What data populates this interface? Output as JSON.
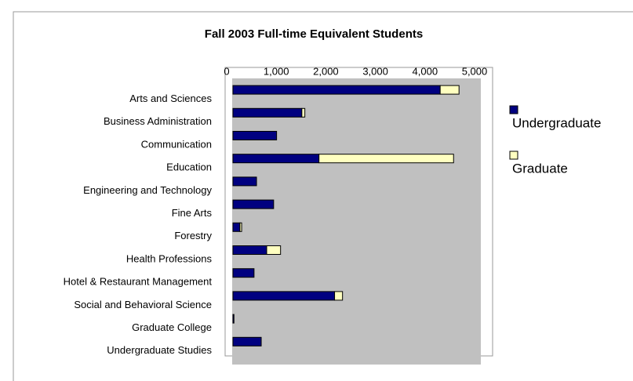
{
  "chart_data": {
    "type": "bar",
    "orientation": "horizontal",
    "stacked": true,
    "title": "Fall 2003 Full-time Equivalent Students",
    "categories": [
      "Arts and Sciences",
      "Business Administration",
      "Communication",
      "Education",
      "Engineering and Technology",
      "Fine Arts",
      "Forestry",
      "Health Professions",
      "Hotel & Restaurant Management",
      "Social and Behavioral Science",
      "Graduate College",
      "Undergraduate Studies"
    ],
    "series": [
      {
        "name": "Undergraduate",
        "color": "#000080",
        "values": [
          4180,
          1390,
          880,
          1735,
          475,
          820,
          140,
          680,
          425,
          2050,
          20,
          570
        ]
      },
      {
        "name": "Graduate",
        "color": "#ffffc0",
        "values": [
          380,
          60,
          0,
          2715,
          0,
          0,
          35,
          280,
          0,
          160,
          0,
          0
        ]
      }
    ],
    "xlim": [
      0,
      5000
    ],
    "xticks": [
      0,
      {
        "value": 1000,
        "label": "1,000"
      },
      {
        "value": 2000,
        "label": "2,000"
      },
      {
        "value": 3000,
        "label": "3,000"
      },
      {
        "value": 4000,
        "label": "4,000"
      },
      {
        "value": 5000,
        "label": "5,000"
      }
    ],
    "legend": "right"
  }
}
